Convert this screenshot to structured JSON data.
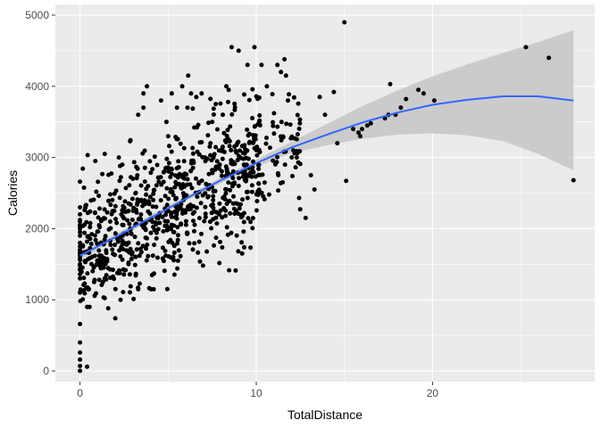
{
  "chart_data": {
    "type": "scatter",
    "title": "",
    "xlabel": "TotalDistance",
    "ylabel": "Calories",
    "xlim": [
      -1.4,
      29.2
    ],
    "ylim": [
      -150,
      5150
    ],
    "x_ticks": [
      0,
      10,
      20
    ],
    "x_tick_labels": [
      "0",
      "10",
      "20"
    ],
    "y_ticks": [
      0,
      1000,
      2000,
      3000,
      4000,
      5000
    ],
    "y_tick_labels": [
      "0",
      "1000",
      "2000",
      "3000",
      "4000",
      "5000"
    ],
    "grid": true,
    "legend": "none",
    "colors": {
      "panel": "#ebebeb",
      "grid": "#ffffff",
      "point": "#000000",
      "smooth": "#3366ff",
      "band": "#c8c8c8"
    },
    "scatter": {
      "cluster_seed": 20240,
      "cluster_count": 820,
      "x": [
        0,
        0,
        0,
        0,
        0,
        0,
        0,
        0,
        0,
        0,
        0,
        0,
        0,
        0,
        0,
        0,
        0,
        0,
        0,
        0,
        0,
        0,
        0,
        0,
        0,
        0,
        0,
        0,
        0,
        0,
        0,
        0.4,
        0.2,
        0.5,
        0.8,
        1.1,
        1.4,
        2,
        1.6,
        2.3,
        1.4,
        2.2,
        2.4,
        3,
        3.3,
        3.6,
        3.6,
        3.8,
        4.6,
        4.9,
        5,
        5.2,
        5.5,
        5.8,
        6.1,
        6.3,
        6.6,
        6.9,
        7.1,
        7.4,
        7.5,
        7.7,
        8.1,
        8.3,
        8.6,
        9,
        9.5,
        9.9,
        9,
        9.3,
        9.2,
        10.3,
        10.6,
        11.2,
        11.4,
        11.6,
        11.8,
        12.1,
        12.3,
        12.8,
        13.1,
        13.3,
        13.6,
        13.9,
        14.4,
        14.6,
        15,
        15.1,
        15.5,
        15.8,
        15.9,
        16,
        16.3,
        16.5,
        17.3,
        17.5,
        17.6,
        17.9,
        18.2,
        18.5,
        19.2,
        19.5,
        20.1,
        25.3,
        26.6,
        28
      ],
      "y": [
        1,
        70,
        160,
        260,
        400,
        660,
        1100,
        1300,
        1360,
        1430,
        1500,
        1620,
        1700,
        1750,
        1800,
        1900,
        1950,
        2000,
        2050,
        2100,
        2200,
        2300,
        2660,
        2030,
        2120,
        1580,
        1670,
        1420,
        1480,
        1560,
        1650,
        60,
        1130,
        1150,
        1250,
        1280,
        1300,
        740,
        880,
        1000,
        3050,
        3000,
        2900,
        2700,
        3600,
        3700,
        3900,
        4000,
        3800,
        3500,
        3300,
        3900,
        3700,
        4000,
        3700,
        3900,
        3850,
        3900,
        3000,
        3200,
        3500,
        3750,
        3600,
        4000,
        4550,
        4500,
        4300,
        4550,
        2600,
        2900,
        1650,
        4300,
        4000,
        4300,
        4200,
        4380,
        3800,
        3100,
        3000,
        2150,
        2750,
        2550,
        3850,
        3600,
        3920,
        3200,
        4900,
        2670,
        3400,
        3350,
        3300,
        3400,
        3450,
        3480,
        3550,
        3600,
        4030,
        3600,
        3700,
        3820,
        3950,
        3900,
        3800,
        4550,
        4400,
        2680
      ]
    },
    "smooth": {
      "x": [
        0,
        2,
        4,
        6,
        8,
        10,
        12,
        14,
        16,
        18,
        20,
        22,
        24,
        26,
        28
      ],
      "y": [
        1620,
        1880,
        2150,
        2420,
        2680,
        2920,
        3140,
        3320,
        3490,
        3630,
        3740,
        3810,
        3860,
        3860,
        3800
      ],
      "lower": [
        1560,
        1840,
        2110,
        2390,
        2640,
        2870,
        3060,
        3170,
        3260,
        3320,
        3340,
        3310,
        3230,
        3050,
        2820
      ],
      "upper": [
        1680,
        1920,
        2190,
        2450,
        2720,
        2970,
        3220,
        3470,
        3720,
        3940,
        4140,
        4310,
        4470,
        4620,
        4790
      ]
    }
  }
}
